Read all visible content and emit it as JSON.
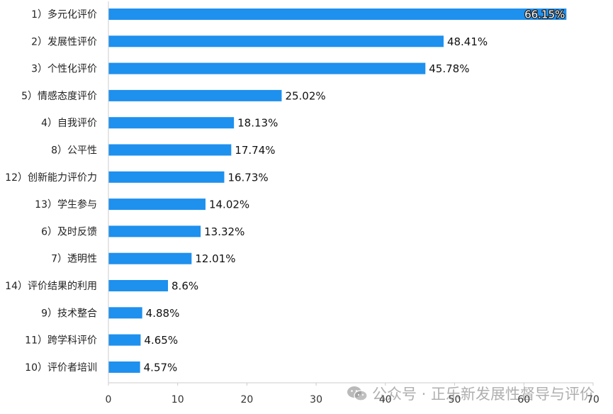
{
  "chart_data": {
    "type": "bar",
    "orientation": "horizontal",
    "categories": [
      "1）多元化评价",
      "2）发展性评价",
      "3）个性化评价",
      "5）情感态度评价",
      "4）自我评价",
      "8）公平性",
      "12）创新能力评价力",
      "13）学生参与",
      "6）及时反馈",
      "7）透明性",
      "14）评价结果的利用",
      "9）技术整合",
      "11）跨学科评价",
      "10）评价者培训"
    ],
    "values": [
      66.15,
      48.41,
      45.78,
      25.02,
      18.13,
      17.74,
      16.73,
      14.02,
      13.32,
      12.01,
      8.6,
      4.88,
      4.65,
      4.57
    ],
    "value_labels": [
      "66.15%",
      "48.41%",
      "45.78%",
      "25.02%",
      "18.13%",
      "17.74%",
      "16.73%",
      "14.02%",
      "13.32%",
      "12.01%",
      "8.6%",
      "4.88%",
      "4.65%",
      "4.57%"
    ],
    "x_ticks": [
      "0",
      "10",
      "20",
      "30",
      "40",
      "50",
      "60",
      "70"
    ],
    "xlim": [
      0,
      70
    ],
    "title": "",
    "xlabel": "",
    "ylabel": "",
    "bar_color": "#1e90ee",
    "grid": false
  },
  "watermark": {
    "icon": "wechat-icon",
    "text": "公众号 · 正乐新发展性督导与评价"
  }
}
